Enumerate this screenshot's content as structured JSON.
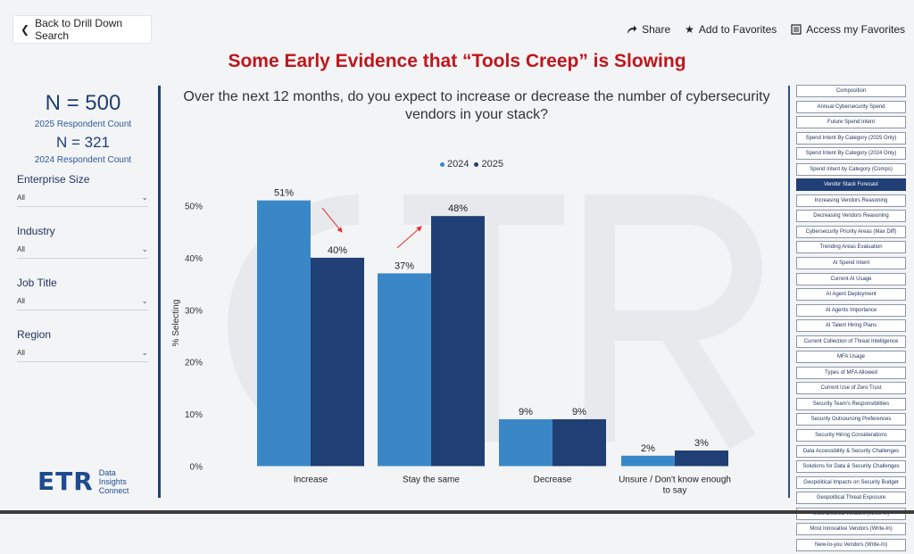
{
  "nav": {
    "back_label": "Back to Drill Down Search"
  },
  "actions": {
    "share": "Share",
    "favorites": "Add to Favorites",
    "access": "Access my Favorites"
  },
  "title": "Some Early Evidence that “Tools Creep” is Slowing",
  "stats": {
    "n2025": "N = 500",
    "n2025_label": "2025 Respondent Count",
    "n2024": "N = 321",
    "n2024_label": "2024 Respondent Count"
  },
  "filters": [
    {
      "label": "Enterprise Size",
      "value": "All"
    },
    {
      "label": "Industry",
      "value": "All"
    },
    {
      "label": "Job Title",
      "value": "All"
    },
    {
      "label": "Region",
      "value": "All"
    }
  ],
  "logo": {
    "mark": "ETR",
    "line1": "Data",
    "line2": "Insights",
    "line3": "Connect"
  },
  "question": "Over the next 12 months, do you expect to increase or decrease the number of cybersecurity vendors in your stack?",
  "colors": {
    "y2024": "#3a87c8",
    "y2025": "#1f3f75",
    "title": "#c0161b",
    "arrow": "#e03030"
  },
  "chart_data": {
    "type": "bar",
    "categories": [
      "Increase",
      "Stay the same",
      "Decrease",
      "Unsure / Don't know enough to say"
    ],
    "series": [
      {
        "name": "2024",
        "values": [
          51,
          37,
          9,
          2
        ]
      },
      {
        "name": "2025",
        "values": [
          40,
          48,
          9,
          3
        ]
      }
    ],
    "ylabel": "% Selecting",
    "ylim": [
      0,
      53.5
    ],
    "yticks": [
      0,
      10,
      20,
      30,
      40,
      50
    ],
    "ytick_labels": [
      "0%",
      "10%",
      "20%",
      "30%",
      "40%",
      "50%"
    ],
    "data_labels": [
      [
        "51%",
        "37%",
        "9%",
        "2%"
      ],
      [
        "40%",
        "48%",
        "9%",
        "3%"
      ]
    ],
    "annotations": [
      "arrow from 51% (2024) down to 40% (2025) on Increase",
      "arrow from 37% (2024) up to 48% (2025) on Stay the same"
    ]
  },
  "sidebar": {
    "items": [
      "Composition",
      "Annual Cybersecurity Spend",
      "Future Spend Intent",
      "Spend Intent By Category (2025 Only)",
      "Spend Intent By Category (2024 Only)",
      "Spend Intent by Category (Comps)",
      "Vendor Stack Forecast",
      "Increasing Vendors Reasoning",
      "Decreasing Vendors Reasoning",
      "Cybersecurity Priority Areas (Max Diff)",
      "Trending Areas Evaluation",
      "AI Spend Intent",
      "Current AI Usage",
      "AI Agent Deployment",
      "AI Agents Importance",
      "AI Talent Hiring Plans",
      "Current Collection of Threat Intelligence",
      "MFA Usage",
      "Types of MFA Allowed",
      "Current Use of Zero Trust",
      "Security Team's Responsibilities",
      "Security Outsourcing Preferences",
      "Security Hiring Considerations",
      "Data Accessibility & Security Challenges",
      "Solutions for Data & Security Challenges",
      "Geopolitical Impacts on Security Budget",
      "Geopolitical Threat Exposure",
      "Most Desired Vendors (Write-In)",
      "Most Innovative Vendors (Write-In)",
      "New-to-you Vendors (Write-In)"
    ],
    "active_index": 6
  }
}
